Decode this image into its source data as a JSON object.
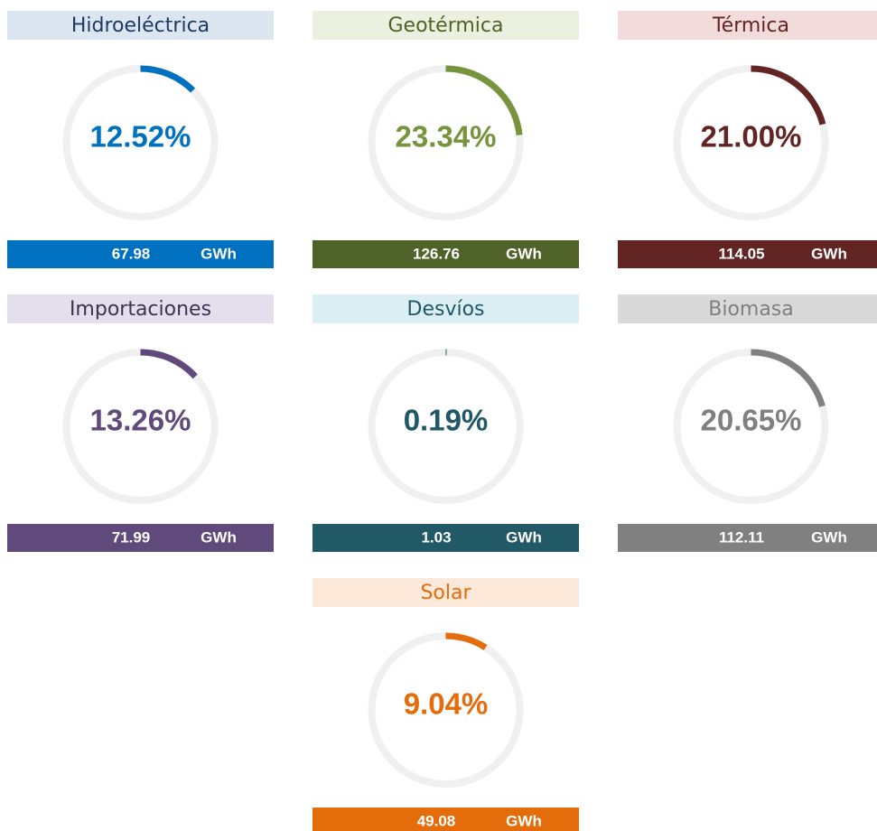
{
  "chart_data": [
    {
      "type": "gauge",
      "title": "Hidroeléctrica",
      "values": [
        12.52
      ],
      "value_labels": [
        "12.52%"
      ],
      "energy": 67.98,
      "unit": "GWh",
      "title_bg": "#dce6f1",
      "title_color": "#1f3864",
      "color": "#0070c0",
      "bar_color": "#0070c0"
    },
    {
      "type": "gauge",
      "title": "Geotérmica",
      "values": [
        23.34
      ],
      "value_labels": [
        "23.34%"
      ],
      "energy": 126.76,
      "unit": "GWh",
      "title_bg": "#ebf1de",
      "title_color": "#4f6228",
      "color": "#77933c",
      "bar_color": "#4f6228"
    },
    {
      "type": "gauge",
      "title": "Térmica",
      "values": [
        21.0
      ],
      "value_labels": [
        "21.00%"
      ],
      "energy": 114.05,
      "unit": "GWh",
      "title_bg": "#f2dcdb",
      "title_color": "#632523",
      "color": "#632523",
      "bar_color": "#632523"
    },
    {
      "type": "gauge",
      "title": "Importaciones",
      "values": [
        13.26
      ],
      "value_labels": [
        "13.26%"
      ],
      "energy": 71.99,
      "unit": "GWh",
      "title_bg": "#e4dfec",
      "title_color": "#403151",
      "color": "#604a7b",
      "bar_color": "#604a7b"
    },
    {
      "type": "gauge",
      "title": "Desvíos",
      "values": [
        0.19
      ],
      "value_labels": [
        "0.19%"
      ],
      "energy": 1.03,
      "unit": "GWh",
      "title_bg": "#daeef3",
      "title_color": "#215867",
      "color": "#215867",
      "bar_color": "#215967"
    },
    {
      "type": "gauge",
      "title": "Biomasa",
      "values": [
        20.65
      ],
      "value_labels": [
        "20.65%"
      ],
      "energy": 112.11,
      "unit": "GWh",
      "title_bg": "#d9d9d9",
      "title_color": "#7f7f7f",
      "color": "#808080",
      "bar_color": "#808080"
    },
    {
      "type": "gauge",
      "title": "Solar",
      "values": [
        9.04
      ],
      "value_labels": [
        "9.04%"
      ],
      "energy": 49.08,
      "unit": "GWh",
      "title_bg": "#fde9d9",
      "title_color": "#e46c0a",
      "color": "#e46c0a",
      "bar_color": "#e46c0a"
    }
  ]
}
